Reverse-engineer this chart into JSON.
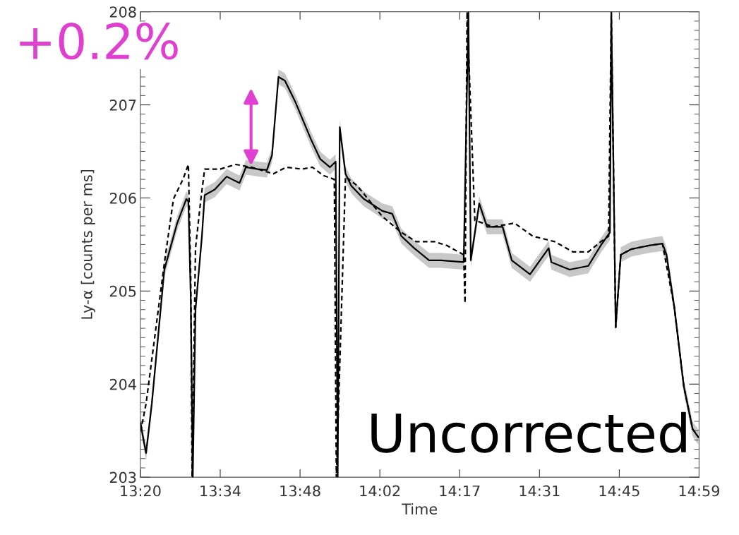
{
  "chart_data": {
    "type": "line",
    "xlabel": "Time",
    "ylabel": "Ly-α [counts per ms]",
    "xlim": [
      13.3333,
      14.9833
    ],
    "ylim": [
      203,
      208
    ],
    "xticks": [
      {
        "value": 13.3333,
        "label": "13:20"
      },
      {
        "value": 13.569,
        "label": "13:34"
      },
      {
        "value": 13.8048,
        "label": "13:48"
      },
      {
        "value": 14.0405,
        "label": "14:02"
      },
      {
        "value": 14.2762,
        "label": "14:17"
      },
      {
        "value": 14.5119,
        "label": "14:31"
      },
      {
        "value": 14.7476,
        "label": "14:45"
      },
      {
        "value": 14.9833,
        "label": "14:59"
      }
    ],
    "yticks": [
      203,
      204,
      205,
      206,
      207,
      208
    ],
    "grid": false,
    "legend": false,
    "marker": "none",
    "annotations": [
      "+0.2%",
      "Uncorrected"
    ],
    "series": [
      {
        "color": "#000000",
        "line_style": "solid",
        "x": [
          13.334,
          13.34,
          13.35,
          13.367,
          13.404,
          13.442,
          13.469,
          13.475,
          13.482,
          13.488,
          13.496,
          13.515,
          13.523,
          13.553,
          13.588,
          13.626,
          13.645,
          13.68,
          13.707,
          13.722,
          13.741,
          13.76,
          13.791,
          13.837,
          13.864,
          13.893,
          13.91,
          13.916,
          13.922,
          13.939,
          13.956,
          13.993,
          14.048,
          14.077,
          14.104,
          14.142,
          14.186,
          14.221,
          14.288,
          14.302,
          14.309,
          14.334,
          14.357,
          14.403,
          14.43,
          14.484,
          14.539,
          14.547,
          14.601,
          14.656,
          14.693,
          14.72,
          14.724,
          14.737,
          14.752,
          14.783,
          14.837,
          14.875,
          14.887,
          14.91,
          14.938,
          14.964,
          14.981
        ],
        "values": [
          203.58,
          203.45,
          203.26,
          203.79,
          205.23,
          205.73,
          205.99,
          205.96,
          204.92,
          203.0,
          204.8,
          205.59,
          206.03,
          206.09,
          206.23,
          206.16,
          206.33,
          206.31,
          206.3,
          206.46,
          207.3,
          207.26,
          207.03,
          206.63,
          206.42,
          206.33,
          206.39,
          203.0,
          206.76,
          206.26,
          206.13,
          205.99,
          205.86,
          205.83,
          205.59,
          205.46,
          205.33,
          205.33,
          205.31,
          208.0,
          205.33,
          205.94,
          205.69,
          205.69,
          205.33,
          205.18,
          205.46,
          205.31,
          205.23,
          205.27,
          205.49,
          205.63,
          208.0,
          204.61,
          205.39,
          205.45,
          205.49,
          205.51,
          205.39,
          204.83,
          203.98,
          203.52,
          203.43
        ],
        "lower": [
          203.5,
          203.37,
          203.18,
          203.71,
          205.15,
          205.65,
          205.91,
          205.88,
          204.84,
          203.0,
          204.72,
          205.51,
          205.95,
          206.01,
          206.15,
          206.08,
          206.25,
          206.23,
          206.22,
          206.38,
          207.22,
          207.18,
          206.95,
          206.55,
          206.34,
          206.25,
          206.31,
          203.0,
          206.68,
          206.18,
          206.05,
          205.91,
          205.78,
          205.75,
          205.51,
          205.38,
          205.25,
          205.25,
          205.23,
          208.0,
          205.25,
          205.86,
          205.61,
          205.61,
          205.25,
          205.1,
          205.38,
          205.23,
          205.15,
          205.19,
          205.41,
          205.55,
          208.0,
          204.53,
          205.31,
          205.37,
          205.41,
          205.43,
          205.31,
          204.75,
          203.9,
          203.44,
          203.35
        ],
        "upper": [
          203.66,
          203.53,
          203.34,
          203.87,
          205.31,
          205.81,
          206.07,
          206.04,
          205.0,
          203.0,
          204.88,
          205.67,
          206.11,
          206.17,
          206.31,
          206.24,
          206.41,
          206.39,
          206.38,
          206.54,
          207.38,
          207.34,
          207.11,
          206.71,
          206.5,
          206.41,
          206.47,
          203.0,
          206.84,
          206.34,
          206.21,
          206.07,
          205.94,
          205.91,
          205.67,
          205.54,
          205.41,
          205.41,
          205.39,
          208.0,
          205.41,
          206.02,
          205.77,
          205.77,
          205.41,
          205.26,
          205.54,
          205.39,
          205.31,
          205.35,
          205.57,
          205.71,
          208.0,
          204.69,
          205.47,
          205.53,
          205.57,
          205.59,
          205.47,
          204.91,
          204.06,
          203.6,
          203.51
        ]
      },
      {
        "color": "#000000",
        "line_style": "dashed",
        "x": [
          13.334,
          13.35,
          13.404,
          13.431,
          13.459,
          13.475,
          13.482,
          13.486,
          13.496,
          13.511,
          13.523,
          13.569,
          13.615,
          13.661,
          13.726,
          13.764,
          13.81,
          13.841,
          13.874,
          13.906,
          13.912,
          13.939,
          13.974,
          14.048,
          14.104,
          14.148,
          14.202,
          14.238,
          14.288,
          14.292,
          14.298,
          14.321,
          14.375,
          14.438,
          14.492,
          14.557,
          14.611,
          14.656,
          14.693,
          14.716,
          14.724,
          14.737,
          14.752,
          14.783,
          14.837,
          14.875,
          14.91,
          14.938,
          14.964,
          14.981
        ],
        "values": [
          203.49,
          203.79,
          205.3,
          205.99,
          206.2,
          206.36,
          205.13,
          203.0,
          205.46,
          205.96,
          206.31,
          206.31,
          206.36,
          206.33,
          206.26,
          206.33,
          206.31,
          206.33,
          206.24,
          206.2,
          203.0,
          206.23,
          206.13,
          205.8,
          205.63,
          205.53,
          205.53,
          205.49,
          205.39,
          204.87,
          208.0,
          205.76,
          205.69,
          205.73,
          205.59,
          205.53,
          205.42,
          205.42,
          205.53,
          205.59,
          208.0,
          204.61,
          205.39,
          205.45,
          205.49,
          205.51,
          204.83,
          203.98,
          203.52,
          203.43
        ]
      }
    ]
  }
}
